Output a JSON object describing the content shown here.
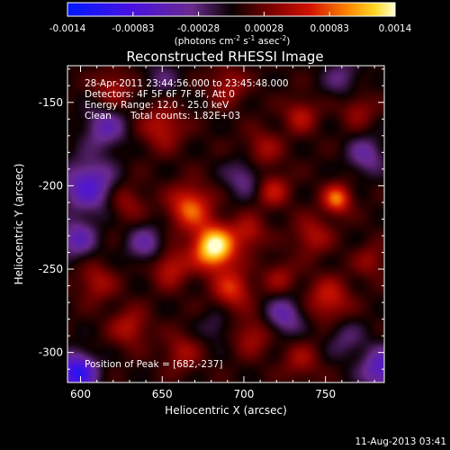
{
  "chart_data": {
    "type": "heatmap",
    "title": "Reconstructed RHESSI Image",
    "xlabel": "Heliocentric X (arcsec)",
    "ylabel": "Heliocentric Y (arcsec)",
    "xlim": [
      592,
      786
    ],
    "ylim": [
      -318,
      -128
    ],
    "xticks": [
      600,
      650,
      700,
      750
    ],
    "yticks": [
      -150,
      -200,
      -250,
      -300
    ],
    "colorbar": {
      "range": [
        -0.0014,
        0.0014
      ],
      "tick_labels": [
        "-0.0014",
        "-0.00083",
        "-0.00028",
        "0.00028",
        "0.00083",
        "0.0014"
      ],
      "unit_prefix": "(photons cm",
      "unit_exp1": "-2",
      "unit_mid": " s",
      "unit_exp2": "-1",
      "unit_mid2": " asec",
      "unit_exp3": "-2",
      "unit_suffix": ")"
    },
    "annotations": {
      "time_range": "28-Apr-2011 23:44:56.000 to 23:45:48.000",
      "detectors": "Detectors: 4F 5F 6F 7F 8F, Att 0",
      "energy": "Energy Range: 12.0 - 25.0 keV",
      "method": "Clean",
      "counts": "Total counts: 1.82E+03",
      "peak": "Position of Peak = [682,-237]"
    },
    "peak": {
      "x": 682,
      "y": -237
    },
    "sources": [
      {
        "x": 682,
        "y": -237,
        "amp": 1.0,
        "s": 9
      },
      {
        "x": 667,
        "y": -213,
        "amp": 0.58,
        "s": 9
      },
      {
        "x": 693,
        "y": -262,
        "amp": 0.46,
        "s": 8
      },
      {
        "x": 655,
        "y": -249,
        "amp": 0.38,
        "s": 8
      },
      {
        "x": 703,
        "y": -228,
        "amp": 0.33,
        "s": 7
      },
      {
        "x": 757,
        "y": -208,
        "amp": 0.62,
        "s": 6
      },
      {
        "x": 742,
        "y": -230,
        "amp": 0.32,
        "s": 8
      },
      {
        "x": 752,
        "y": -268,
        "amp": 0.4,
        "s": 9
      },
      {
        "x": 718,
        "y": -203,
        "amp": 0.36,
        "s": 7
      },
      {
        "x": 712,
        "y": -178,
        "amp": 0.28,
        "s": 8
      },
      {
        "x": 735,
        "y": -158,
        "amp": 0.34,
        "s": 7
      },
      {
        "x": 770,
        "y": -155,
        "amp": 0.26,
        "s": 7
      },
      {
        "x": 690,
        "y": -140,
        "amp": 0.3,
        "s": 8
      },
      {
        "x": 650,
        "y": -165,
        "amp": 0.36,
        "s": 9
      },
      {
        "x": 620,
        "y": -142,
        "amp": 0.3,
        "s": 8
      },
      {
        "x": 628,
        "y": -210,
        "amp": 0.26,
        "s": 8
      },
      {
        "x": 610,
        "y": -258,
        "amp": 0.3,
        "s": 8
      },
      {
        "x": 630,
        "y": -285,
        "amp": 0.34,
        "s": 8
      },
      {
        "x": 662,
        "y": -300,
        "amp": 0.28,
        "s": 8
      },
      {
        "x": 705,
        "y": -290,
        "amp": 0.3,
        "s": 8
      },
      {
        "x": 735,
        "y": -305,
        "amp": 0.26,
        "s": 8
      },
      {
        "x": 778,
        "y": -245,
        "amp": 0.24,
        "s": 7
      },
      {
        "x": 722,
        "y": -255,
        "amp": 0.26,
        "s": 7
      },
      {
        "x": 598,
        "y": -312,
        "amp": -0.8,
        "s": 8
      },
      {
        "x": 605,
        "y": -200,
        "amp": -0.55,
        "s": 11
      },
      {
        "x": 615,
        "y": -165,
        "amp": -0.4,
        "s": 9
      },
      {
        "x": 640,
        "y": -235,
        "amp": -0.35,
        "s": 8
      },
      {
        "x": 700,
        "y": -195,
        "amp": -0.3,
        "s": 8
      },
      {
        "x": 725,
        "y": -278,
        "amp": -0.4,
        "s": 8
      },
      {
        "x": 775,
        "y": -182,
        "amp": -0.35,
        "s": 8
      },
      {
        "x": 760,
        "y": -135,
        "amp": -0.25,
        "s": 8
      },
      {
        "x": 785,
        "y": -310,
        "amp": -0.55,
        "s": 9
      },
      {
        "x": 650,
        "y": -135,
        "amp": -0.2,
        "s": 8
      },
      {
        "x": 598,
        "y": -232,
        "amp": -0.42,
        "s": 8
      },
      {
        "x": 762,
        "y": -292,
        "amp": -0.22,
        "s": 8
      },
      {
        "x": 683,
        "y": -285,
        "amp": -0.18,
        "s": 7
      }
    ],
    "grid": false
  },
  "footer": {
    "date": "11-Aug-2013 03:41"
  }
}
